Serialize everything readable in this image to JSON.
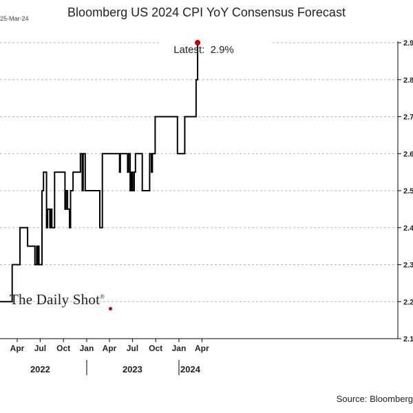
{
  "chart_data": {
    "type": "line",
    "title": "Bloomberg US 2024 CPI YoY Consensus Forecast",
    "date_stamp": "25-Mar-24",
    "annotation": "Latest:  2.9%",
    "source": "Source: Bloomberg",
    "watermark": "The Daily Shot",
    "watermark_mark": "®",
    "line_color": "#000000",
    "marker_color": "#c00000",
    "ylim": [
      2.1,
      2.9
    ],
    "y_ticks": [
      "2.1",
      "2.2",
      "2.3",
      "2.4",
      "2.5",
      "2.6",
      "2.7",
      "2.8",
      "2.9"
    ],
    "y_tick_values": [
      2.1,
      2.2,
      2.3,
      2.4,
      2.5,
      2.6,
      2.7,
      2.8,
      2.9
    ],
    "x_ticks": [
      {
        "label": "Apr",
        "date": "2022-04-01"
      },
      {
        "label": "Jul",
        "date": "2022-07-01"
      },
      {
        "label": "Oct",
        "date": "2022-10-01"
      },
      {
        "label": "Jan",
        "date": "2023-01-01"
      },
      {
        "label": "Apr",
        "date": "2023-04-01"
      },
      {
        "label": "Jul",
        "date": "2023-07-01"
      },
      {
        "label": "Oct",
        "date": "2023-10-01"
      },
      {
        "label": "Jan",
        "date": "2024-01-01"
      },
      {
        "label": "Apr",
        "date": "2024-04-01"
      }
    ],
    "year_labels": [
      {
        "label": "2022",
        "date": "2022-07-01"
      },
      {
        "label": "2023",
        "date": "2023-07-01"
      },
      {
        "label": "2024",
        "date": "2024-02-15"
      }
    ],
    "year_dividers": [
      "2023-01-01",
      "2024-01-01"
    ],
    "series": [
      {
        "x": [
          "2022-01-15",
          "2022-03-12",
          "2022-03-12",
          "2022-04-12",
          "2022-04-12",
          "2022-05-12",
          "2022-05-12",
          "2022-06-10",
          "2022-06-10",
          "2022-06-17",
          "2022-06-17",
          "2022-06-20",
          "2022-06-20",
          "2022-06-23",
          "2022-06-23",
          "2022-06-26",
          "2022-06-26",
          "2022-07-08",
          "2022-07-08",
          "2022-07-14",
          "2022-07-14",
          "2022-07-26",
          "2022-07-26",
          "2022-07-30",
          "2022-07-30",
          "2022-08-08",
          "2022-08-08",
          "2022-08-12",
          "2022-08-12",
          "2022-08-16",
          "2022-08-16",
          "2022-08-27",
          "2022-08-27",
          "2022-10-07",
          "2022-10-07",
          "2022-10-11",
          "2022-10-11",
          "2022-10-17",
          "2022-10-17",
          "2022-10-25",
          "2022-10-25",
          "2022-10-29",
          "2022-10-29",
          "2022-11-08",
          "2022-11-08",
          "2022-12-07",
          "2022-12-07",
          "2022-12-14",
          "2022-12-14",
          "2022-12-18",
          "2022-12-18",
          "2022-12-26",
          "2022-12-26",
          "2023-02-22",
          "2023-02-22",
          "2023-03-04",
          "2023-03-04",
          "2023-05-11",
          "2023-05-11",
          "2023-05-14",
          "2023-05-14",
          "2023-05-22",
          "2023-05-22",
          "2023-06-12",
          "2023-06-12",
          "2023-06-16",
          "2023-06-16",
          "2023-06-22",
          "2023-06-22",
          "2023-06-27",
          "2023-06-27",
          "2023-07-02",
          "2023-07-02",
          "2023-07-08",
          "2023-07-08",
          "2023-07-13",
          "2023-07-13",
          "2023-07-20",
          "2023-07-20",
          "2023-08-09",
          "2023-08-09",
          "2023-09-03",
          "2023-09-03",
          "2023-09-07",
          "2023-09-07",
          "2023-09-10",
          "2023-09-10",
          "2023-09-14",
          "2023-09-14",
          "2023-09-18",
          "2023-09-18",
          "2023-09-25",
          "2023-09-25",
          "2023-09-29",
          "2023-09-29",
          "2023-12-26",
          "2023-12-26",
          "2024-01-24",
          "2024-01-24",
          "2024-03-09",
          "2024-03-09",
          "2024-03-15",
          "2024-03-15"
        ],
        "y": [
          2.2,
          2.2,
          2.3,
          2.3,
          2.4,
          2.4,
          2.35,
          2.35,
          2.3,
          2.3,
          2.35,
          2.35,
          2.3,
          2.3,
          2.35,
          2.35,
          2.3,
          2.3,
          2.5,
          2.5,
          2.55,
          2.55,
          2.4,
          2.4,
          2.45,
          2.45,
          2.4,
          2.4,
          2.45,
          2.45,
          2.4,
          2.4,
          2.55,
          2.55,
          2.45,
          2.45,
          2.5,
          2.5,
          2.45,
          2.45,
          2.4,
          2.4,
          2.5,
          2.5,
          2.55,
          2.55,
          2.6,
          2.6,
          2.5,
          2.5,
          2.6,
          2.6,
          2.5,
          2.5,
          2.4,
          2.4,
          2.6,
          2.6,
          2.55,
          2.55,
          2.6,
          2.6,
          2.6,
          2.6,
          2.55,
          2.55,
          2.6,
          2.6,
          2.5,
          2.5,
          2.55,
          2.55,
          2.5,
          2.5,
          2.55,
          2.55,
          2.6,
          2.6,
          2.6,
          2.6,
          2.5,
          2.5,
          2.5,
          2.5,
          2.6,
          2.6,
          2.6,
          2.6,
          2.55,
          2.55,
          2.6,
          2.6,
          2.6,
          2.6,
          2.7,
          2.7,
          2.6,
          2.6,
          2.7,
          2.7,
          2.8,
          2.8,
          2.9
        ]
      }
    ],
    "latest_point": {
      "x": "2024-03-15",
      "y": 2.9
    },
    "grid": "dashed horizontal",
    "legend": "none"
  }
}
